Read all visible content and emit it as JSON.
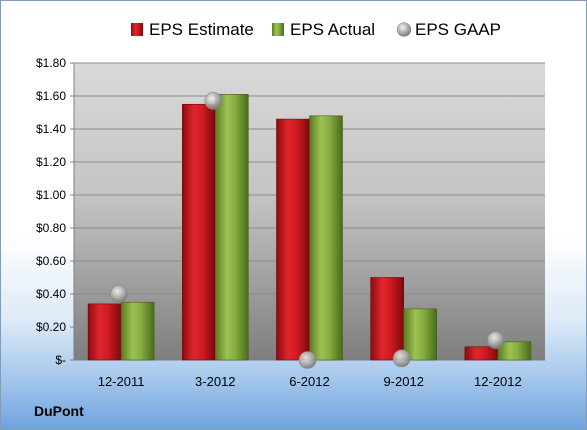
{
  "company": "DuPont",
  "chart_data": {
    "type": "bar",
    "categories": [
      "12-2011",
      "3-2012",
      "6-2012",
      "9-2012",
      "12-2012"
    ],
    "series": [
      {
        "name": "EPS Estimate",
        "type": "bar",
        "color": "#c0151b",
        "values": [
          0.34,
          1.55,
          1.46,
          0.5,
          0.08
        ]
      },
      {
        "name": "EPS Actual",
        "type": "bar",
        "color": "#7fa33a",
        "values": [
          0.35,
          1.61,
          1.48,
          0.31,
          0.11
        ]
      },
      {
        "name": "EPS GAAP",
        "type": "scatter",
        "color": "#a8a8a8",
        "values": [
          0.4,
          1.57,
          0.0,
          0.01,
          0.12
        ]
      }
    ],
    "ylim": [
      0,
      1.8
    ],
    "yticks": [
      0,
      0.2,
      0.4,
      0.6,
      0.8,
      1.0,
      1.2,
      1.4,
      1.6,
      1.8
    ],
    "ytick_labels": [
      "$-",
      "$0.20",
      "$0.40",
      "$0.60",
      "$0.80",
      "$1.00",
      "$1.20",
      "$1.40",
      "$1.60",
      "$1.80"
    ],
    "grid": true,
    "legend_position": "top"
  }
}
